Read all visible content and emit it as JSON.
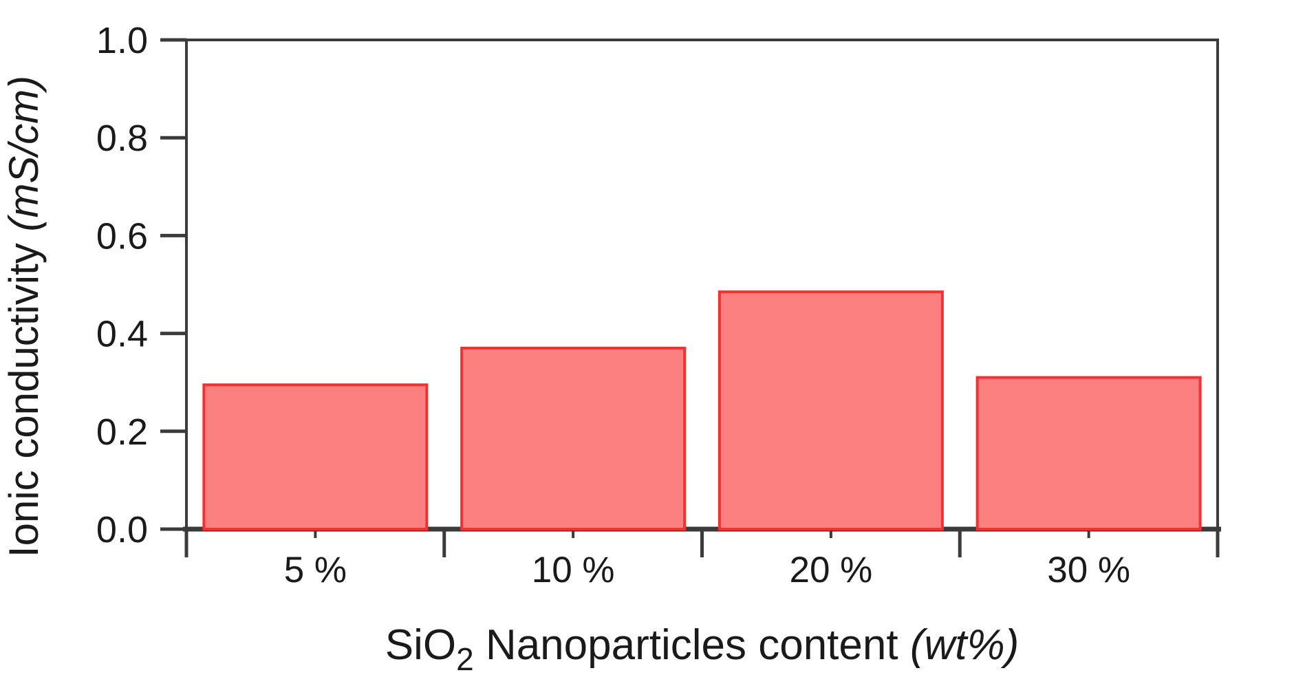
{
  "page": {
    "background": "#ffffff"
  },
  "chart_data": {
    "type": "bar",
    "title": "",
    "categories": [
      "5 %",
      "10 %",
      "20 %",
      "30 %"
    ],
    "values": [
      0.295,
      0.37,
      0.485,
      0.31
    ],
    "xlabel": "SiO2 Nanoparticles content (wt%)",
    "xlabel_parts": [
      {
        "text": "SiO",
        "style": "normal"
      },
      {
        "text": "2",
        "style": "subscript"
      },
      {
        "text": " Nanoparticles content ",
        "style": "normal"
      },
      {
        "text": "(wt%)",
        "style": "italic"
      }
    ],
    "ylabel": "Ionic conductivity (mS/cm)",
    "ylabel_parts": [
      {
        "text": "Ionic conductivity ",
        "style": "normal"
      },
      {
        "text": "(mS/cm)",
        "style": "italic"
      }
    ],
    "ylim": [
      0.0,
      1.0
    ],
    "yticks": [
      0.0,
      0.2,
      0.4,
      0.6,
      0.8,
      1.0
    ],
    "ytick_labels": [
      "0.0",
      "0.2",
      "0.4",
      "0.6",
      "0.8",
      "1.0"
    ],
    "grid": false,
    "legend": "none",
    "frame": "box",
    "bar_border": true,
    "colors": {
      "bar_fill": "#FC8080",
      "bar_stroke": "#F53030",
      "axis": "#3B3B3B",
      "text": "#1A1A1A"
    }
  }
}
